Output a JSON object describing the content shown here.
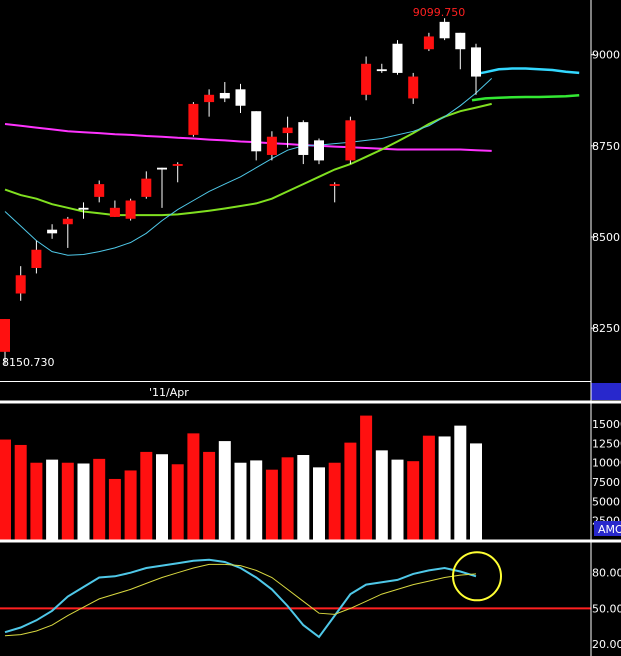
{
  "chart_data": [
    {
      "type": "candlestick",
      "panel": "price",
      "x_label": "'11/Apr",
      "y_ticks": [
        8250,
        8500,
        8750,
        9000
      ],
      "y_tick_labels": [
        "8250",
        "8500",
        "8750",
        "9000"
      ],
      "ylim": [
        8105,
        9150
      ],
      "annotations": {
        "high": "9099.750",
        "low": "8150.730"
      },
      "candles": [
        {
          "o": 8275,
          "h": 8275,
          "l": 8150,
          "c": 8185
        },
        {
          "o": 8395,
          "h": 8420,
          "l": 8325,
          "c": 8345
        },
        {
          "o": 8465,
          "h": 8490,
          "l": 8400,
          "c": 8415
        },
        {
          "o": 8510,
          "h": 8535,
          "l": 8495,
          "c": 8520
        },
        {
          "o": 8550,
          "h": 8555,
          "l": 8470,
          "c": 8535
        },
        {
          "o": 8575,
          "h": 8595,
          "l": 8550,
          "c": 8580
        },
        {
          "o": 8645,
          "h": 8655,
          "l": 8595,
          "c": 8610
        },
        {
          "o": 8580,
          "h": 8600,
          "l": 8555,
          "c": 8555
        },
        {
          "o": 8600,
          "h": 8605,
          "l": 8545,
          "c": 8550
        },
        {
          "o": 8660,
          "h": 8680,
          "l": 8605,
          "c": 8610
        },
        {
          "o": 8685,
          "h": 8690,
          "l": 8580,
          "c": 8690
        },
        {
          "o": 8700,
          "h": 8705,
          "l": 8650,
          "c": 8695
        },
        {
          "o": 8865,
          "h": 8870,
          "l": 8775,
          "c": 8780
        },
        {
          "o": 8890,
          "h": 8905,
          "l": 8830,
          "c": 8870
        },
        {
          "o": 8880,
          "h": 8925,
          "l": 8870,
          "c": 8895
        },
        {
          "o": 8860,
          "h": 8920,
          "l": 8840,
          "c": 8905
        },
        {
          "o": 8735,
          "h": 8845,
          "l": 8710,
          "c": 8845
        },
        {
          "o": 8775,
          "h": 8790,
          "l": 8710,
          "c": 8725
        },
        {
          "o": 8800,
          "h": 8830,
          "l": 8745,
          "c": 8785
        },
        {
          "o": 8725,
          "h": 8820,
          "l": 8700,
          "c": 8815
        },
        {
          "o": 8710,
          "h": 8770,
          "l": 8700,
          "c": 8765
        },
        {
          "o": 8645,
          "h": 8650,
          "l": 8595,
          "c": 8640
        },
        {
          "o": 8820,
          "h": 8830,
          "l": 8700,
          "c": 8710
        },
        {
          "o": 8975,
          "h": 8995,
          "l": 8875,
          "c": 8890
        },
        {
          "o": 8955,
          "h": 8975,
          "l": 8950,
          "c": 8960
        },
        {
          "o": 8950,
          "h": 9040,
          "l": 8945,
          "c": 9030
        },
        {
          "o": 8940,
          "h": 8950,
          "l": 8865,
          "c": 8880
        },
        {
          "o": 9050,
          "h": 9060,
          "l": 9010,
          "c": 9015
        },
        {
          "o": 9045,
          "h": 9100,
          "l": 9040,
          "c": 9090
        },
        {
          "o": 9015,
          "h": 9060,
          "l": 8960,
          "c": 9060
        },
        {
          "o": 8940,
          "h": 9030,
          "l": 8890,
          "c": 9020
        }
      ],
      "series": [
        {
          "color": "#ff33ff",
          "values": [
            8810,
            8805,
            8800,
            8795,
            8790,
            8787,
            8785,
            8782,
            8780,
            8777,
            8775,
            8772,
            8770,
            8767,
            8765,
            8762,
            8760,
            8757,
            8755,
            8752,
            8750,
            8748,
            8746,
            8744,
            8742,
            8740,
            8740,
            8740,
            8740,
            8740,
            8738,
            8736
          ]
        },
        {
          "color": "#80e020",
          "values": [
            8630,
            8615,
            8605,
            8590,
            8580,
            8570,
            8565,
            8560,
            8560,
            8560,
            8560,
            8562,
            8567,
            8572,
            8578,
            8585,
            8592,
            8605,
            8625,
            8645,
            8665,
            8685,
            8700,
            8720,
            8740,
            8762,
            8785,
            8810,
            8830,
            8845,
            8855,
            8865
          ]
        },
        {
          "color": "#4fc8e8",
          "values": [
            8570,
            8530,
            8490,
            8460,
            8450,
            8452,
            8460,
            8470,
            8485,
            8510,
            8545,
            8575,
            8600,
            8625,
            8645,
            8665,
            8690,
            8715,
            8738,
            8750,
            8752,
            8756,
            8760,
            8765,
            8770,
            8780,
            8790,
            8805,
            8830,
            8860,
            8895,
            8935
          ]
        },
        {
          "color": "#33e833",
          "projection": true,
          "values": [
            8875,
            8880,
            8882,
            8883,
            8884,
            8884,
            8885,
            8886,
            8889
          ]
        },
        {
          "color": "#33d8ff",
          "projection": true,
          "values": [
            8945,
            8952,
            8960,
            8962,
            8962,
            8960,
            8958,
            8953,
            8950
          ]
        }
      ]
    },
    {
      "type": "bar",
      "panel": "volume",
      "y_ticks": [
        2500,
        5000,
        7500,
        10000,
        12500,
        15000
      ],
      "y_tick_labels": [
        "2500",
        "5000",
        "7500",
        "10000",
        "12500",
        "15000"
      ],
      "ylim": [
        0,
        17600
      ],
      "badge": "AMO",
      "values": [
        13000,
        12300,
        10000,
        10400,
        10000,
        9900,
        10500,
        7900,
        9000,
        11400,
        11100,
        9800,
        13800,
        11400,
        12800,
        10000,
        10300,
        9100,
        10700,
        11000,
        9400,
        10000,
        12600,
        16100,
        11600,
        10400,
        10200,
        13500,
        13400,
        14800,
        12500
      ]
    },
    {
      "type": "line",
      "panel": "oscillator",
      "y_ticks": [
        20,
        50,
        80
      ],
      "y_tick_labels": [
        "20.00",
        "50.00",
        "80.00"
      ],
      "ylim": [
        10,
        105
      ],
      "reference_line": {
        "value": 50,
        "color": "#ff2020"
      },
      "series": [
        {
          "color": "#4fc8e8",
          "values": [
            30,
            34,
            40,
            48,
            60,
            68,
            76,
            77,
            80,
            84,
            86,
            88,
            90,
            91,
            89,
            84,
            76,
            66,
            52,
            36,
            26,
            44,
            62,
            70,
            72,
            74,
            79,
            82,
            84,
            81,
            77
          ]
        },
        {
          "color": "#d8d840",
          "values": [
            27,
            28,
            31,
            36,
            44,
            51,
            58,
            62,
            66,
            71,
            76,
            80,
            84,
            87,
            87,
            86,
            82,
            76,
            66,
            56,
            46,
            45,
            50,
            56,
            62,
            66,
            70,
            73,
            76,
            78,
            79
          ]
        }
      ],
      "highlight_marker": {
        "shape": "circle",
        "x_index": 30,
        "y": 77,
        "color": "#ffff33"
      }
    }
  ]
}
